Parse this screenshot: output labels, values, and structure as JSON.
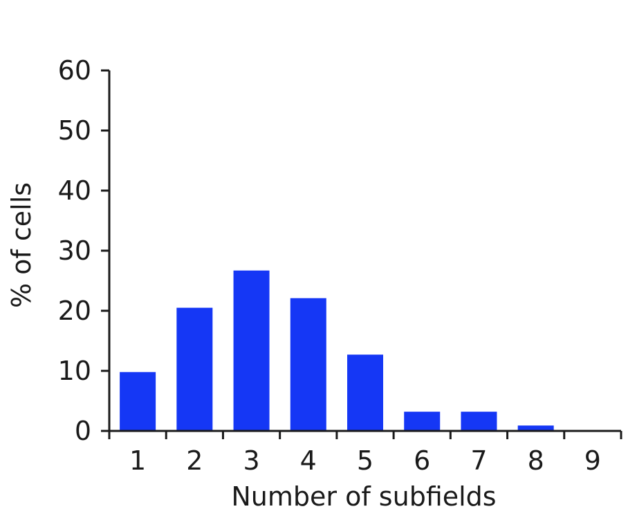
{
  "chart_data": {
    "type": "bar",
    "categories": [
      "1",
      "2",
      "3",
      "4",
      "5",
      "6",
      "7",
      "8",
      "9"
    ],
    "values": [
      9.8,
      20.5,
      26.7,
      22.1,
      12.7,
      3.2,
      3.2,
      0.9,
      0
    ],
    "xlabel": "Number of subfields",
    "ylabel": "% of cells",
    "ylim": [
      0,
      60
    ],
    "yticks": [
      "0",
      "10",
      "20",
      "30",
      "40",
      "50",
      "60"
    ],
    "bar_color": "#1537f5",
    "grid": false
  }
}
